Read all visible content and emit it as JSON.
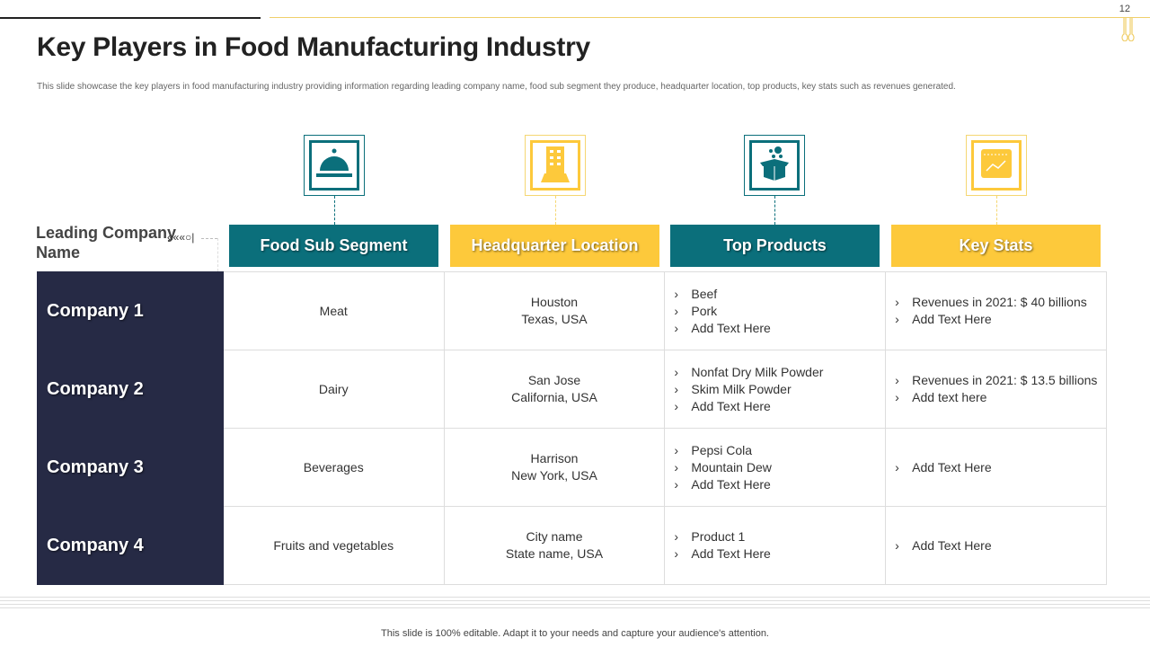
{
  "page_number": "12",
  "title": "Key Players in Food Manufacturing Industry",
  "subtitle": "This slide showcase the key players in food manufacturing industry providing information regarding leading company name, food sub segment they produce, headquarter location, top products, key stats such as revenues generated.",
  "colors": {
    "teal": "#0b6f7b",
    "yellow": "#fdc93b",
    "navy": "#262a45"
  },
  "leading_label": "Leading Company Name",
  "arrows": "«««○|",
  "headers": [
    {
      "label": "Food Sub Segment",
      "icon": "food-cloche-icon"
    },
    {
      "label": "Headquarter Location",
      "icon": "building-icon"
    },
    {
      "label": "Top Products",
      "icon": "product-box-icon"
    },
    {
      "label": "Key Stats",
      "icon": "analytics-chart-icon"
    }
  ],
  "rows": [
    {
      "company": "Company 1",
      "segment": "Meat",
      "hq": [
        "Houston",
        "Texas, USA"
      ],
      "products": [
        "Beef",
        "Pork",
        "Add Text Here"
      ],
      "stats": [
        "Revenues in 2021: $ 40 billions",
        "Add Text Here"
      ]
    },
    {
      "company": "Company 2",
      "segment": "Dairy",
      "hq": [
        "San Jose",
        "California, USA"
      ],
      "products": [
        "Nonfat Dry Milk Powder",
        "Skim Milk Powder",
        "Add Text Here"
      ],
      "stats": [
        "Revenues in 2021: $ 13.5 billions",
        "Add text here"
      ]
    },
    {
      "company": "Company 3",
      "segment": "Beverages",
      "hq": [
        "Harrison",
        "New York, USA"
      ],
      "products": [
        "Pepsi Cola",
        "Mountain Dew",
        "Add Text Here"
      ],
      "stats": [
        "Add Text Here"
      ]
    },
    {
      "company": "Company 4",
      "segment": "Fruits and vegetables",
      "hq": [
        "City name",
        "State name, USA"
      ],
      "products": [
        "Product 1",
        "Add Text Here"
      ],
      "stats": [
        "Add Text Here"
      ]
    }
  ],
  "footer": "This slide is 100% editable. Adapt it to your needs and capture your audience's attention."
}
